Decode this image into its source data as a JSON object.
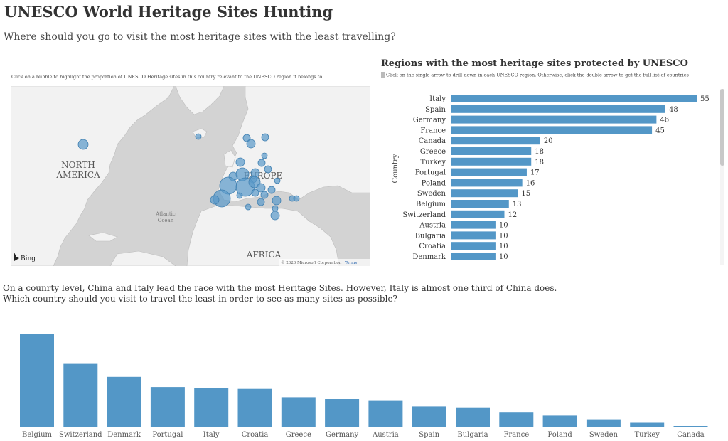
{
  "header": {
    "title": "UNESCO World Heritage Sites Hunting",
    "subtitle": "Where should you go to visit the most heritage sites with the least travelling?"
  },
  "map_panel": {
    "instruction": "Click on a bubble to highlight the proportion of UNESCO Heritage sites in this country relevant to the UNESCO region it belongs to",
    "labels": {
      "north": "NORTH",
      "america": "AMERICA",
      "europe": "EUROPE",
      "atlantic": "Atlantic",
      "ocean": "Ocean",
      "africa": "AFRICA"
    },
    "bing": "Bing",
    "copyright": "© 2020 Microsoft Corporation",
    "terms": "Terms",
    "colors": {
      "water": "#d3d3d3",
      "land": "#f2f2f2",
      "bubble": "#5b9ac9"
    }
  },
  "bar_panel": {
    "title": "Regions with the most heritage sites protected by UNESCO",
    "instruction": "Click  on the single arrow to drill-down in each UNESCO region. Otherwise, click the double arrow to get the full list of countries"
  },
  "story": {
    "line1": "On a counrty level,  China and Italy lead the race with the most Heritage Sites. However, Italy is almost one third of China does.",
    "line2": "Which country should you visit to travel the least in order to see as many sites as possible?"
  },
  "chart_data": [
    {
      "type": "bar",
      "orientation": "horizontal",
      "ylabel": "Country",
      "categories": [
        "Italy",
        "Spain",
        "Germany",
        "France",
        "Canada",
        "Greece",
        "Turkey",
        "Portugal",
        "Poland",
        "Sweden",
        "Belgium",
        "Switzerland",
        "Austria",
        "Bulgaria",
        "Croatia",
        "Denmark"
      ],
      "values": [
        55,
        48,
        46,
        45,
        20,
        18,
        18,
        17,
        16,
        15,
        13,
        12,
        10,
        10,
        10,
        10
      ],
      "color": "#5397c7",
      "xlim": [
        0,
        55
      ]
    },
    {
      "type": "bar",
      "orientation": "vertical",
      "categories": [
        "Belgium",
        "Switzerland",
        "Denmark",
        "Portugal",
        "Italy",
        "Croatia",
        "Greece",
        "Germany",
        "Austria",
        "Spain",
        "Bulgaria",
        "France",
        "Poland",
        "Sweden",
        "Turkey",
        "Canada"
      ],
      "values": [
        100,
        68,
        54,
        43,
        42,
        41,
        32,
        30,
        28,
        22,
        21,
        16,
        12,
        8,
        5,
        0.5
      ],
      "color": "#5397c7",
      "ylim": [
        0,
        100
      ]
    }
  ]
}
